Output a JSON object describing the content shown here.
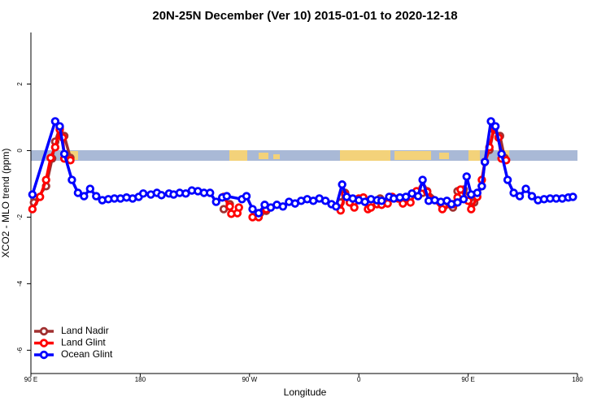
{
  "chart_data": {
    "type": "line",
    "title": "20N-25N December (Ver 10)   2015-01-01 to 2020-12-18",
    "xlabel": "Longitude",
    "ylabel": "XCO2 - MLO trend (ppm)",
    "xlim": [
      90,
      450
    ],
    "ylim": [
      -6.7,
      3.55
    ],
    "xticks": [
      {
        "value": 90,
        "label": "90 E"
      },
      {
        "value": 162,
        "label": "180"
      },
      {
        "value": 234,
        "label": "90 W"
      },
      {
        "value": 306,
        "label": "0"
      },
      {
        "value": 378,
        "label": "90 E"
      },
      {
        "value": 450,
        "label": "180"
      }
    ],
    "yticks": [
      -6,
      -4,
      -2,
      0,
      2
    ],
    "legend": "bottom-left",
    "series": [
      {
        "name": "Land Nadir",
        "color": "#a03030",
        "x": [
          92,
          100,
          104,
          106,
          109,
          112,
          116,
          null,
          217,
          221,
          null,
          241,
          245,
          null,
          294,
          297,
          null,
          320,
          null,
          348,
          351,
          362,
          368,
          371,
          375,
          382,
          387,
          389,
          392,
          395,
          399,
          402
        ],
        "values": [
          -1.56,
          -1.07,
          -0.24,
          0.27,
          0.68,
          0.44,
          -0.22,
          null,
          -1.76,
          -1.61,
          null,
          -1.88,
          -1.81,
          null,
          -1.56,
          -1.27,
          null,
          -1.44,
          null,
          -1.27,
          -1.22,
          -1.68,
          -1.71,
          -1.22,
          -1.17,
          -1.56,
          -1.07,
          -0.34,
          0.02,
          0.63,
          0.44,
          -0.22
        ]
      },
      {
        "name": "Land Glint",
        "color": "#ff0000",
        "x": [
          91,
          96,
          100,
          103,
          106,
          109,
          111,
          112,
          116,
          null,
          217,
          221,
          222,
          226,
          227,
          null,
          236,
          240,
          245,
          null,
          294,
          297,
          300,
          303,
          306,
          309,
          312,
          314,
          318,
          321,
          325,
          328,
          332,
          335,
          340,
          344,
          348,
          351,
          361,
          368,
          371,
          373,
          378,
          380,
          384,
          387,
          389,
          392,
          395,
          398,
          400,
          403
        ],
        "values": [
          -1.76,
          -1.39,
          -0.88,
          -0.22,
          0.1,
          0.63,
          0.39,
          -0.24,
          -0.29,
          null,
          -1.39,
          -1.68,
          -1.9,
          -1.88,
          -1.71,
          null,
          -2.0,
          -2.0,
          -1.76,
          null,
          -1.8,
          -1.32,
          -1.56,
          -1.71,
          -1.44,
          -1.41,
          -1.76,
          -1.71,
          -1.61,
          -1.63,
          -1.59,
          -1.39,
          -1.44,
          -1.59,
          -1.56,
          -1.22,
          -1.12,
          -1.24,
          -1.76,
          -1.61,
          -1.41,
          -1.17,
          -1.51,
          -1.76,
          -1.39,
          -0.88,
          -0.34,
          0.1,
          0.68,
          0.39,
          -0.24,
          -0.29
        ]
      },
      {
        "name": "Ocean Glint",
        "color": "#0000ff",
        "x": [
          91,
          106,
          109,
          112,
          117,
          121,
          125,
          129,
          133,
          137,
          141,
          145,
          149,
          153,
          157,
          161,
          164,
          169,
          173,
          176,
          181,
          184,
          188,
          192,
          196,
          200,
          204,
          208,
          212,
          216,
          219,
          229,
          232,
          236,
          240,
          244,
          248,
          252,
          256,
          260,
          264,
          268,
          272,
          276,
          280,
          284,
          288,
          291,
          295,
          298,
          302,
          306,
          310,
          314,
          318,
          321,
          326,
          329,
          333,
          337,
          341,
          345,
          348,
          352,
          356,
          360,
          364,
          367,
          371,
          375,
          377,
          380,
          384,
          387,
          389,
          393,
          396,
          400,
          404,
          408,
          412,
          416,
          420,
          424,
          428,
          432,
          436,
          440,
          444,
          447
        ],
        "values": [
          -1.32,
          0.88,
          0.73,
          -0.1,
          -0.88,
          -1.27,
          -1.37,
          -1.15,
          -1.37,
          -1.49,
          -1.46,
          -1.44,
          -1.44,
          -1.41,
          -1.44,
          -1.39,
          -1.29,
          -1.32,
          -1.27,
          -1.34,
          -1.29,
          -1.32,
          -1.27,
          -1.29,
          -1.2,
          -1.22,
          -1.27,
          -1.27,
          -1.54,
          -1.41,
          -1.37,
          -1.46,
          -1.37,
          -1.76,
          -1.88,
          -1.63,
          -1.71,
          -1.63,
          -1.68,
          -1.54,
          -1.59,
          -1.51,
          -1.46,
          -1.51,
          -1.44,
          -1.51,
          -1.61,
          -1.68,
          -1.02,
          -1.39,
          -1.44,
          -1.49,
          -1.54,
          -1.46,
          -1.49,
          -1.51,
          -1.39,
          -1.44,
          -1.41,
          -1.39,
          -1.29,
          -1.37,
          -0.88,
          -1.51,
          -1.49,
          -1.54,
          -1.51,
          -1.61,
          -1.56,
          -1.46,
          -0.78,
          -1.32,
          -1.27,
          -1.07,
          -0.34,
          0.88,
          0.73,
          -0.1,
          -0.88,
          -1.27,
          -1.37,
          -1.15,
          -1.37,
          -1.49,
          -1.46,
          -1.44,
          -1.44,
          -1.44,
          -1.41,
          -1.39
        ]
      }
    ]
  }
}
